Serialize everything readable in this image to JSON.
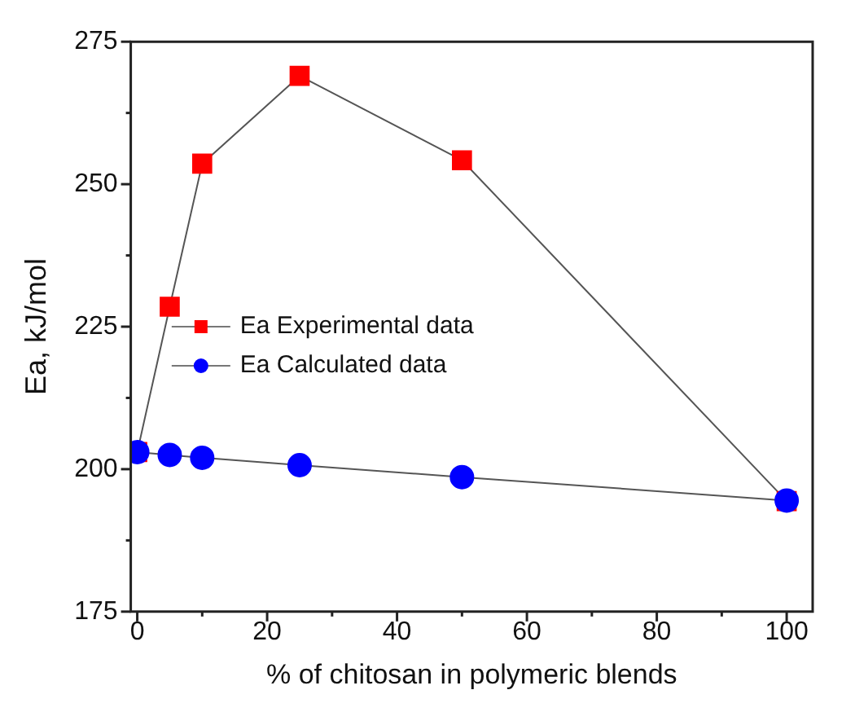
{
  "chart_data": {
    "type": "line",
    "xlabel": "% of chitosan in polymeric blends",
    "ylabel": "Ea, kJ/mol",
    "x": [
      0,
      5,
      10,
      25,
      50,
      100
    ],
    "series": [
      {
        "name": "Ea Experimental data",
        "color": "#ff0000",
        "marker": "square",
        "values": [
          203,
          228.5,
          253.6,
          269,
          254.2,
          194.4
        ]
      },
      {
        "name": "Ea Calculated data",
        "color": "#0000ff",
        "marker": "circle",
        "values": [
          203,
          202.5,
          202,
          200.7,
          198.6,
          194.5
        ]
      }
    ],
    "xlim": [
      -1,
      104
    ],
    "ylim": [
      175,
      275
    ],
    "xticks": [
      0,
      {
        "value": 10,
        "label": null
      },
      20,
      {
        "value": 30,
        "label": null
      },
      40,
      {
        "value": 50,
        "label": null
      },
      60,
      {
        "value": 70,
        "label": null
      },
      80,
      {
        "value": 90,
        "label": null
      },
      100
    ],
    "yticks": [
      175,
      {
        "value": 187.5,
        "label": null
      },
      200,
      {
        "value": 212.5,
        "label": null
      },
      225,
      {
        "value": 237.5,
        "label": null
      },
      250,
      {
        "value": 262.5,
        "label": null
      },
      275
    ],
    "grid": false,
    "legend": "center"
  }
}
